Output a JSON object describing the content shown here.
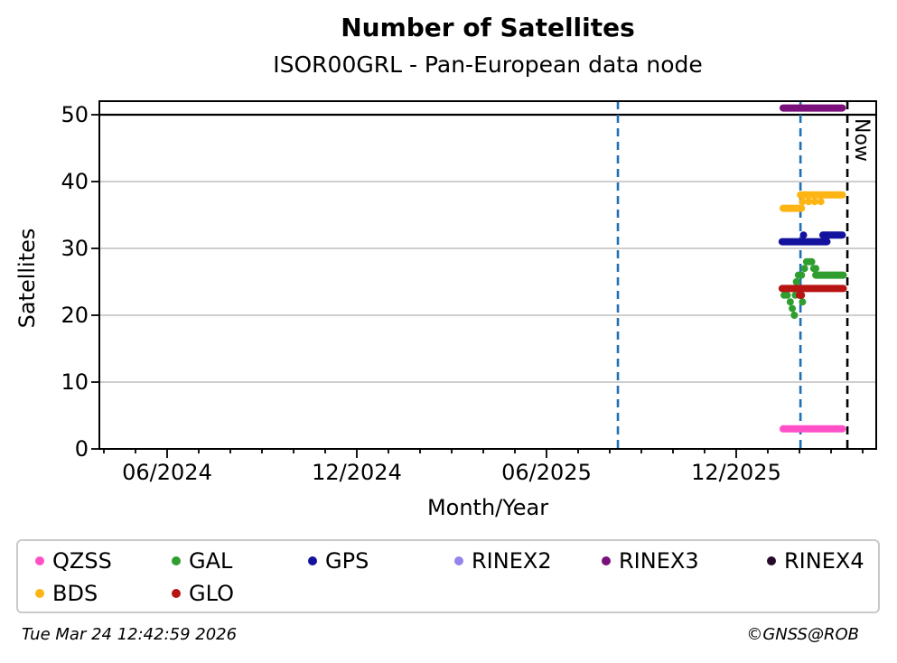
{
  "header": {
    "title": "Number of Satellites",
    "subtitle": "ISOR00GRL - Pan-European data node"
  },
  "footer": {
    "timestamp": "Tue Mar 24 12:42:59 2026",
    "credit": "©GNSS@ROB"
  },
  "legend": {
    "items": [
      {
        "label": "QZSS",
        "color": "#ff50c8"
      },
      {
        "label": "GAL",
        "color": "#2f9e2f"
      },
      {
        "label": "GPS",
        "color": "#12129e"
      },
      {
        "label": "RINEX2",
        "color": "#9683ec"
      },
      {
        "label": "RINEX3",
        "color": "#7b0f7b"
      },
      {
        "label": "RINEX4",
        "color": "#26092b"
      },
      {
        "label": "BDS",
        "color": "#fdb515"
      },
      {
        "label": "GLO",
        "color": "#b81414"
      }
    ]
  },
  "chart_data": {
    "type": "scatter",
    "title": "Number of Satellites",
    "subtitle": "ISOR00GRL - Pan-European data node",
    "xlabel": "Month/Year",
    "ylabel": "Satellites",
    "ylim": [
      0,
      52
    ],
    "yticks": [
      0,
      10,
      20,
      30,
      40,
      50
    ],
    "xticks": [
      {
        "label": "06/2024",
        "date": "2024-06-01"
      },
      {
        "label": "12/2024",
        "date": "2024-12-01"
      },
      {
        "label": "06/2025",
        "date": "2025-06-01"
      },
      {
        "label": "12/2025",
        "date": "2025-12-01"
      }
    ],
    "x_range": [
      "2024-03-26",
      "2026-04-14"
    ],
    "minor_ticks": "monthly",
    "grid": {
      "horizontal": true,
      "color": "#b0b0b0"
    },
    "hline": {
      "value": 50,
      "color": "#000000",
      "span": "full-width"
    },
    "vlines": [
      {
        "date": "2025-08-09",
        "color": "#1f6fb4",
        "style": "dashed"
      },
      {
        "date": "2026-02-02",
        "color": "#1f6fb4",
        "style": "dashed"
      }
    ],
    "now_line": {
      "date": "2026-03-17",
      "color": "#000000",
      "style": "dashed"
    },
    "now_label": "Now",
    "series": [
      {
        "name": "QZSS",
        "color": "#ff50c8",
        "runs": [
          {
            "value": 3,
            "start": "2026-01-16",
            "end": "2026-03-12"
          }
        ],
        "dots": []
      },
      {
        "name": "GAL",
        "color": "#2f9e2f",
        "runs": [
          {
            "value": 26,
            "start": "2026-02-17",
            "end": "2026-03-13"
          }
        ],
        "dots": [
          [
            "2026-01-17",
            23
          ],
          [
            "2026-01-20",
            23
          ],
          [
            "2026-01-21",
            24
          ],
          [
            "2026-01-23",
            22
          ],
          [
            "2026-01-25",
            21
          ],
          [
            "2026-01-27",
            20
          ],
          [
            "2026-01-28",
            23
          ],
          [
            "2026-01-29",
            25
          ],
          [
            "2026-01-31",
            26
          ],
          [
            "2026-02-01",
            24
          ],
          [
            "2026-02-03",
            26
          ],
          [
            "2026-02-04",
            22
          ],
          [
            "2026-02-06",
            27
          ],
          [
            "2026-02-08",
            28
          ],
          [
            "2026-02-11",
            28
          ],
          [
            "2026-02-13",
            28
          ],
          [
            "2026-02-15",
            27
          ],
          [
            "2026-02-17",
            27
          ]
        ]
      },
      {
        "name": "GPS",
        "color": "#12129e",
        "runs": [
          {
            "value": 31,
            "start": "2026-01-15",
            "end": "2026-02-28"
          },
          {
            "value": 32,
            "start": "2026-02-24",
            "end": "2026-03-12"
          }
        ],
        "dots": [
          [
            "2026-02-05",
            32
          ]
        ]
      },
      {
        "name": "RINEX2",
        "color": "#9683ec",
        "runs": [],
        "dots": []
      },
      {
        "name": "RINEX3",
        "color": "#7b0f7b",
        "runs": [
          {
            "value": 51,
            "start": "2026-01-16",
            "end": "2026-03-12"
          }
        ],
        "dots": []
      },
      {
        "name": "RINEX4",
        "color": "#26092b",
        "runs": [],
        "dots": []
      },
      {
        "name": "BDS",
        "color": "#fdb515",
        "runs": [
          {
            "value": 36,
            "start": "2026-01-16",
            "end": "2026-02-03"
          },
          {
            "value": 38,
            "start": "2026-02-02",
            "end": "2026-03-12"
          }
        ],
        "dots": [
          [
            "2026-02-04",
            37
          ],
          [
            "2026-02-10",
            37
          ],
          [
            "2026-02-16",
            37
          ],
          [
            "2026-02-22",
            37
          ]
        ]
      },
      {
        "name": "GLO",
        "color": "#b81414",
        "runs": [
          {
            "value": 24,
            "start": "2026-01-15",
            "end": "2026-03-13"
          }
        ],
        "dots": [
          [
            "2026-02-01",
            23
          ],
          [
            "2026-02-02",
            23
          ],
          [
            "2026-02-03",
            23
          ]
        ]
      }
    ]
  }
}
